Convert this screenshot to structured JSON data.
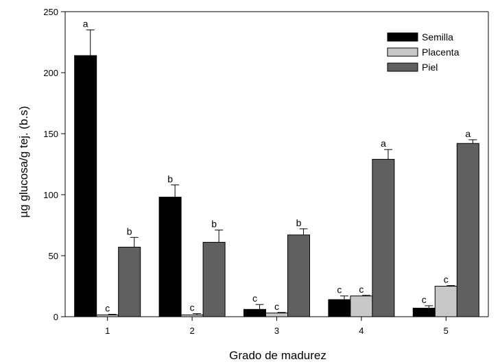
{
  "chart_data": {
    "type": "bar",
    "title": "",
    "xlabel": "Grado de madurez",
    "ylabel": "µg glucosa/g tej. (b.s)",
    "ylim": [
      0,
      250
    ],
    "yticks": [
      0,
      50,
      100,
      150,
      200,
      250
    ],
    "categories": [
      "1",
      "2",
      "3",
      "4",
      "5"
    ],
    "legend_position": "top-right",
    "grid": false,
    "series": [
      {
        "name": "Semilla",
        "color": "#000000",
        "values": [
          214,
          98,
          6,
          14,
          7
        ],
        "errors": [
          21,
          10,
          4,
          3,
          2
        ],
        "labels": [
          "a",
          "b",
          "c",
          "c",
          "c"
        ]
      },
      {
        "name": "Placenta",
        "color": "#c8c8c8",
        "values": [
          1.5,
          1.5,
          3,
          17,
          25
        ],
        "errors": [
          0.5,
          1,
          0.5,
          0.5,
          0.5
        ],
        "labels": [
          "c",
          "c",
          "c",
          "c",
          "c"
        ]
      },
      {
        "name": "Piel",
        "color": "#606060",
        "values": [
          57,
          61,
          67,
          129,
          142
        ],
        "errors": [
          8,
          10,
          5,
          8,
          3
        ],
        "labels": [
          "b",
          "b",
          "b",
          "a",
          "a"
        ]
      }
    ]
  }
}
